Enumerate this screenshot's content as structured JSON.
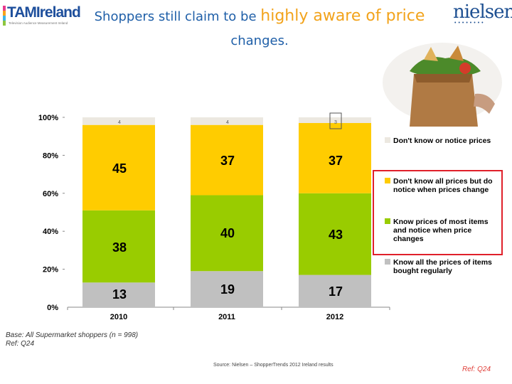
{
  "header": {
    "logo_left_text": "TAMIreland",
    "logo_left_tagline": "Television Audience Measurement Ireland",
    "title_part1": "Shoppers still claim to be ",
    "title_highlight": "highly aware of price",
    "title_part2": "changes.",
    "logo_right_text": "nielsen"
  },
  "colors": {
    "dont_know_notice": "#ece8e0",
    "dont_know_all": "#ffcc00",
    "know_most": "#99cc00",
    "know_all": "#c0c0c0",
    "highlight_border": "#e0202a",
    "title_blue": "#1f5fa8",
    "title_orange": "#f2a31b"
  },
  "chart_data": {
    "type": "bar",
    "stacked": true,
    "categories": [
      "2010",
      "2011",
      "2012"
    ],
    "series": [
      {
        "name": "Know all the prices of items bought regularly",
        "values": [
          13,
          19,
          17
        ]
      },
      {
        "name": "Know prices of most items and notice when price changes",
        "values": [
          38,
          40,
          43
        ]
      },
      {
        "name": "Don't know all prices but do notice when prices change",
        "values": [
          45,
          37,
          37
        ]
      },
      {
        "name": "Don't know or notice prices",
        "values": [
          4,
          4,
          3
        ]
      }
    ],
    "data_labels": [
      [
        "13",
        "38",
        "45"
      ],
      [
        "19",
        "40",
        "37"
      ],
      [
        "17",
        "43",
        "37"
      ]
    ],
    "small_labels": [
      "4",
      "4",
      "3"
    ],
    "y_ticks": [
      "0%",
      "20%",
      "40%",
      "60%",
      "80%",
      "100%"
    ],
    "ylim": [
      0,
      100
    ],
    "legend_lines": [
      [
        "Don't know or notice prices"
      ],
      [
        "Don't know all prices but do",
        "notice when prices change"
      ],
      [
        "Know prices of most items",
        "and notice when price",
        "changes"
      ],
      [
        "Know all the prices of items",
        "bought regularly"
      ]
    ],
    "legend_position": "right",
    "highlighted_series": [
      1,
      2
    ]
  },
  "footer": {
    "base_line1": "Base: All Supermarket shoppers (n = 998)",
    "base_line2": "Ref: Q24",
    "source": "Source: Nielsen – ShopperTrends 2012 Ireland results",
    "ref": "Ref: Q24"
  }
}
